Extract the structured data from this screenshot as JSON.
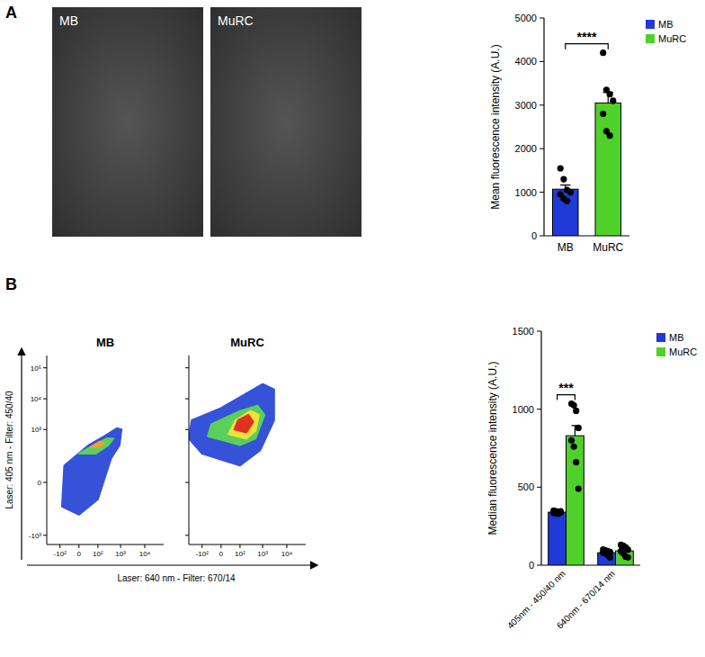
{
  "panel_labels": [
    "A",
    "B"
  ],
  "chart_data": [
    {
      "type": "image",
      "title": "MB"
    },
    {
      "type": "image",
      "title": "MuRC"
    },
    {
      "type": "bar",
      "categories": [
        "MB",
        "MuRC"
      ],
      "values": [
        1070,
        3050
      ],
      "errors": [
        95,
        240
      ],
      "points": [
        [
          1550,
          1300,
          1050,
          1000,
          950,
          850,
          800
        ],
        [
          4200,
          3350,
          3250,
          3100,
          2800,
          2400,
          2300
        ]
      ],
      "colors": [
        "#1f3ad6",
        "#4fd12a"
      ],
      "ylabel": "Mean fluorescence intensity (A.U.)",
      "ylim": [
        0,
        5000
      ],
      "yticks": [
        0,
        1000,
        2000,
        3000,
        4000,
        5000
      ],
      "legend": "top-right",
      "annotations": [
        {
          "text": "****",
          "categories": [
            "MB",
            "MuRC"
          ]
        }
      ]
    },
    {
      "type": "density",
      "title": "MB",
      "xlabel": "Laser: 640 nm - Filter: 670/14",
      "ylabel": "Laser: 405 nm - Filter: 450/40",
      "xlim": [
        -400,
        60000
      ],
      "ylim": [
        -2000,
        250000
      ],
      "xticks": [
        {
          "value": -100,
          "label": "-10²"
        },
        0,
        {
          "value": 100,
          "label": "10²"
        },
        {
          "value": 1000,
          "label": "10³"
        },
        {
          "value": 10000,
          "label": "10⁴"
        }
      ],
      "yticks": [
        {
          "value": -1000,
          "label": "-10³"
        },
        0,
        {
          "value": 1000,
          "label": "10³"
        },
        {
          "value": 10000,
          "label": "10⁴"
        },
        {
          "value": 100000,
          "label": "10⁵"
        }
      ],
      "contours": [
        {
          "color": "#3552d9",
          "x": [
            -80,
            0,
            100,
            400,
            900,
            1100,
            700,
            200,
            30,
            -60
          ],
          "y": [
            -100,
            -200,
            -50,
            100,
            300,
            1000,
            1100,
            600,
            300,
            50
          ]
        },
        {
          "color": "#58d05a",
          "x": [
            0,
            80,
            300,
            500,
            250,
            60
          ],
          "y": [
            150,
            150,
            300,
            500,
            500,
            300
          ]
        },
        {
          "color": "#f2a12a",
          "x": [
            40,
            100,
            200,
            120
          ],
          "y": [
            250,
            250,
            350,
            400
          ]
        }
      ]
    },
    {
      "type": "density",
      "title": "MuRC",
      "tick_labels": "x",
      "xlim": [
        -400,
        60000
      ],
      "ylim": [
        -2000,
        250000
      ],
      "xticks": [
        {
          "value": -100,
          "label": "-10²"
        },
        0,
        {
          "value": 100,
          "label": "10²"
        },
        {
          "value": 1000,
          "label": "10³"
        },
        {
          "value": 10000,
          "label": "10⁴"
        }
      ],
      "yticks": [
        {
          "value": -1000,
          "label": "-10³"
        },
        0,
        {
          "value": 1000,
          "label": "10³"
        },
        {
          "value": 10000,
          "label": "10⁴"
        },
        {
          "value": 100000,
          "label": "10⁵"
        }
      ],
      "contours": [
        {
          "color": "#3552d9",
          "x": [
            -400,
            -100,
            100,
            800,
            3000,
            3000,
            1000,
            200,
            0,
            -300
          ],
          "y": [
            500,
            150,
            50,
            200,
            2000,
            20000,
            30000,
            15000,
            5000,
            2000
          ]
        },
        {
          "color": "#58d05a",
          "x": [
            -50,
            100,
            500,
            1200,
            600,
            100,
            -30
          ],
          "y": [
            600,
            300,
            500,
            3000,
            6000,
            4000,
            1500
          ]
        },
        {
          "color": "#f2e03a",
          "x": [
            20,
            200,
            500,
            700,
            300,
            60
          ],
          "y": [
            700,
            500,
            900,
            3000,
            4000,
            2000
          ]
        },
        {
          "color": "#e0321f",
          "x": [
            50,
            200,
            400,
            250,
            80
          ],
          "y": [
            1000,
            800,
            1800,
            3000,
            2000
          ]
        }
      ]
    },
    {
      "type": "bar",
      "categories": [
        "405nm - 450/40 nm",
        "640nm - 670/14 nm"
      ],
      "series": [
        {
          "name": "MB",
          "color": "#1f3ad6",
          "values": [
            340,
            80
          ],
          "errors": [
            3,
            6
          ],
          "points": [
            [
              350,
              345,
              342,
              338,
              335,
              332,
              330,
              345
            ],
            [
              100,
              95,
              90,
              85,
              80,
              75,
              65,
              50
            ]
          ]
        },
        {
          "name": "MuRC",
          "color": "#4fd12a",
          "values": [
            830,
            92
          ],
          "errors": [
            65,
            12
          ],
          "points": [
            [
              1035,
              1025,
              990,
              880,
              800,
              760,
              660,
              490
            ],
            [
              130,
              125,
              115,
              100,
              90,
              75,
              55,
              50
            ]
          ]
        }
      ],
      "ylabel": "Median fluorescence intensity (A.U.)",
      "ylim": [
        0,
        1500
      ],
      "yticks": [
        0,
        500,
        1000,
        1500
      ],
      "legend": "top-right",
      "annotations": [
        {
          "text": "***",
          "categories": [
            "405nm - 450/40 nm"
          ]
        }
      ]
    }
  ]
}
